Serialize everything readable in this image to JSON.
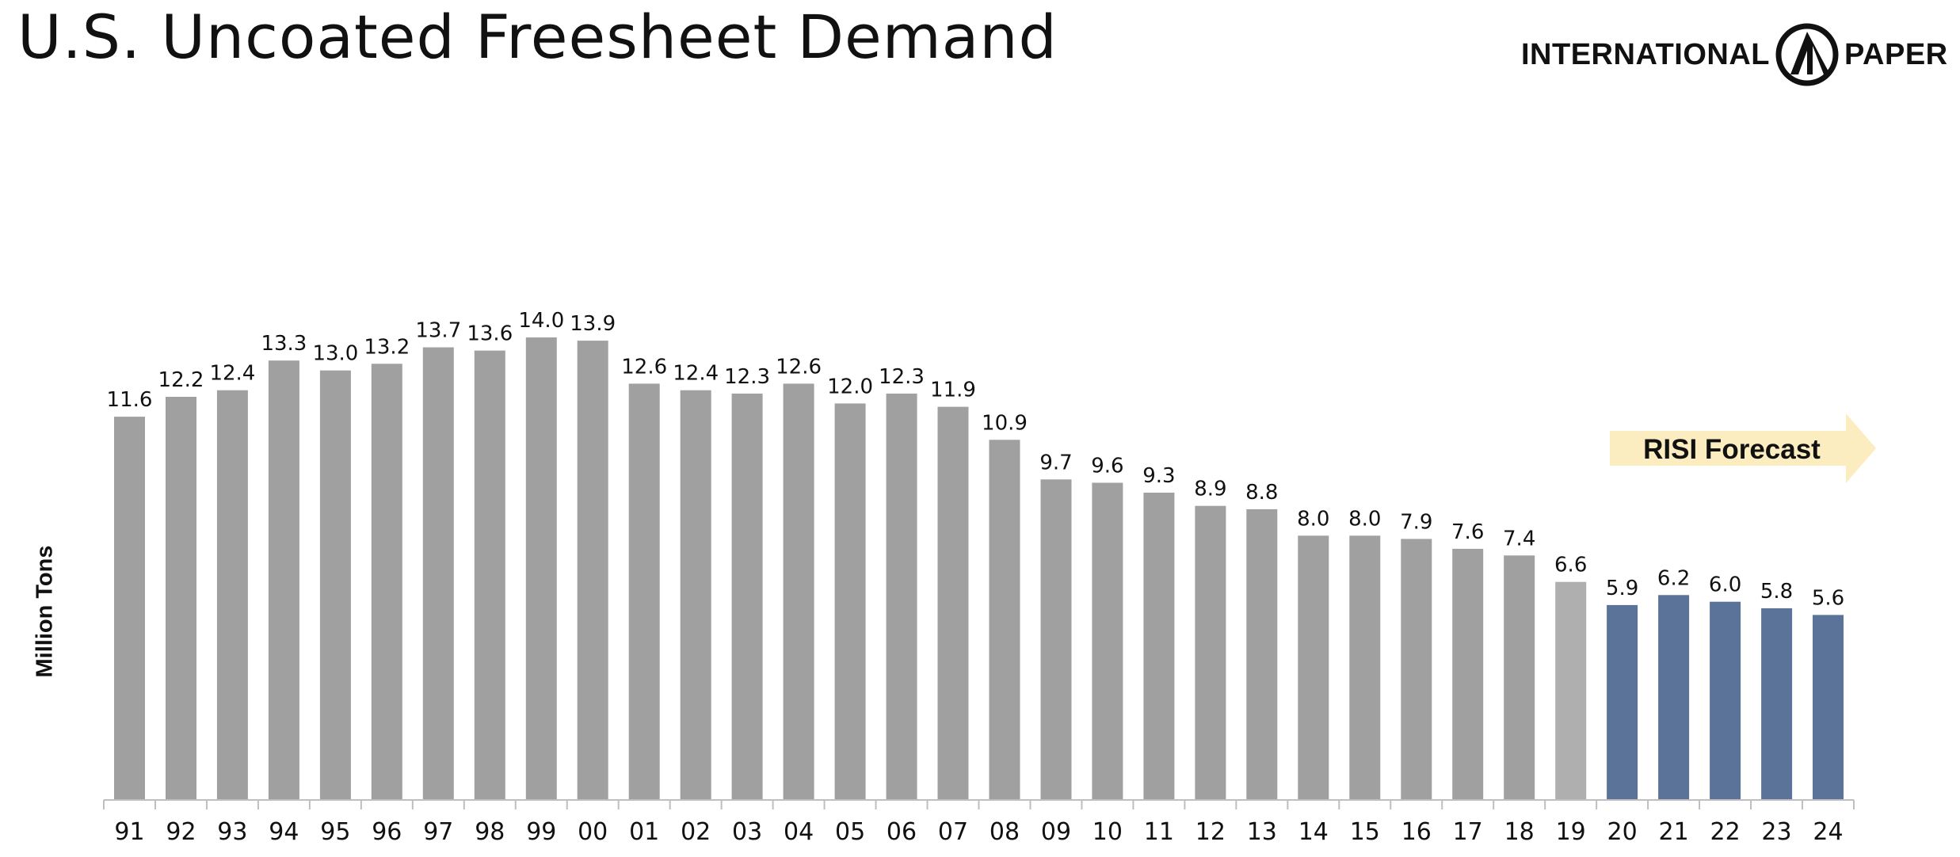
{
  "header": {
    "title": "U.S. Uncoated Freesheet Demand",
    "logo_left": "INTERNATIONAL",
    "logo_right": "PAPER",
    "logo_icon": "international-paper-logo-icon"
  },
  "forecast_tag": {
    "label": "RISI Forecast",
    "color": "#FBEDC0"
  },
  "colors": {
    "historical": "#A0A0A0",
    "last_actual": "#AFAFAF",
    "forecast": "#5B7299",
    "axis": "#BFBFBF"
  },
  "chart_data": {
    "type": "bar",
    "title": "U.S. Uncoated Freesheet Demand",
    "xlabel": "",
    "ylabel": "Million Tons",
    "ylim": [
      0,
      16.3
    ],
    "grid": false,
    "legend": "none",
    "annotation": "RISI Forecast",
    "categories": [
      "91",
      "92",
      "93",
      "94",
      "95",
      "96",
      "97",
      "98",
      "99",
      "00",
      "01",
      "02",
      "03",
      "04",
      "05",
      "06",
      "07",
      "08",
      "09",
      "10",
      "11",
      "12",
      "13",
      "14",
      "15",
      "16",
      "17",
      "18",
      "19",
      "20",
      "21",
      "22",
      "23",
      "24"
    ],
    "values": [
      11.6,
      12.2,
      12.4,
      13.3,
      13.0,
      13.2,
      13.7,
      13.6,
      14.0,
      13.9,
      12.6,
      12.4,
      12.3,
      12.6,
      12.0,
      12.3,
      11.9,
      10.9,
      9.7,
      9.6,
      9.3,
      8.9,
      8.8,
      8.0,
      8.0,
      7.9,
      7.6,
      7.4,
      6.6,
      5.9,
      6.2,
      6.0,
      5.8,
      5.6
    ],
    "labels": [
      "11.6",
      "12.2",
      "12.4",
      "13.3",
      "13.0",
      "13.2",
      "13.7",
      "13.6",
      "14.0",
      "13.9",
      "12.6",
      "12.4",
      "12.3",
      "12.6",
      "12.0",
      "12.3",
      "11.9",
      "10.9",
      "9.7",
      "9.6",
      "9.3",
      "8.9",
      "8.8",
      "8.0",
      "8.0",
      "7.9",
      "7.6",
      "7.4",
      "6.6",
      "5.9",
      "6.2",
      "6.0",
      "5.8",
      "5.6"
    ],
    "forecast_categories": [
      "20",
      "21",
      "22",
      "23",
      "24"
    ]
  }
}
